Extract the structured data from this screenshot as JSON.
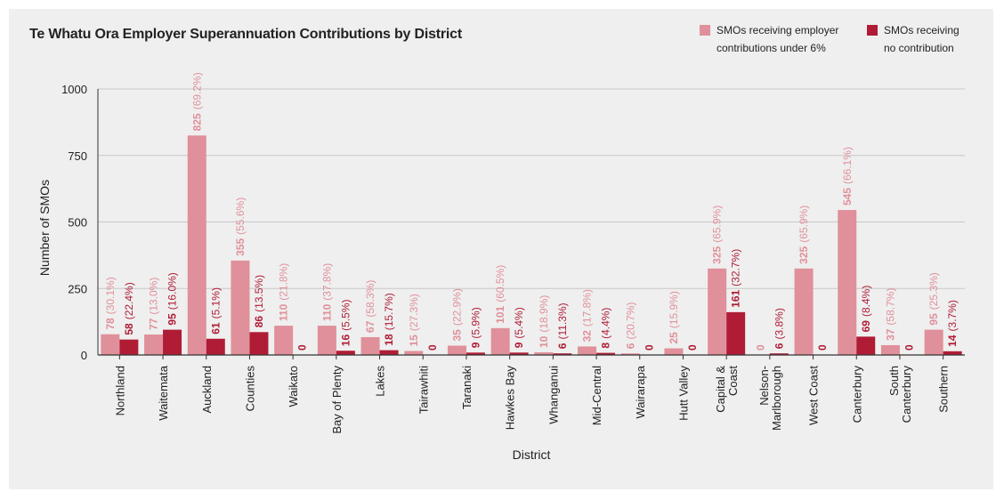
{
  "chart_data": {
    "type": "bar",
    "title": "Te Whatu Ora Employer Superannuation Contributions by District",
    "xlabel": "District",
    "ylabel": "Number of SMOs",
    "ylim": [
      0,
      1000
    ],
    "yticks": [
      0,
      250,
      500,
      750,
      1000
    ],
    "grid": true,
    "legend_position": "top-right",
    "categories": [
      "Northland",
      "Waitemata",
      "Auckland",
      "Counties",
      "Waikato",
      "Bay of Plenty",
      "Lakes",
      "Tairawhiti",
      "Taranaki",
      "Hawkes Bay",
      "Whanganui",
      "Mid-Central",
      "Wairarapa",
      "Hutt Valley",
      "Capital & Coast",
      "Nelson-Marlborough",
      "West Coast",
      "Canterbury",
      "South Canterbury",
      "Southern"
    ],
    "series": [
      {
        "name": "SMOs receiving employer contributions under 6%",
        "color": "#e0909a",
        "values": [
          78,
          77,
          825,
          355,
          110,
          110,
          67,
          15,
          35,
          101,
          10,
          32,
          6,
          25,
          325,
          0,
          325,
          545,
          37,
          95
        ],
        "percent_labels": [
          "(30.1%)",
          "(13.0%)",
          "(69.2%)",
          "(55.6%)",
          "(21.8%)",
          "(37.8%)",
          "(58.3%)",
          "(27.3%)",
          "(22.9%)",
          "(60.5%)",
          "(18.9%)",
          "(17.8%)",
          "(20.7%)",
          "(15.9%)",
          "(65.9%)",
          "",
          "(65.9%)",
          "(66.1%)",
          "(58.7%)",
          "(25.3%)"
        ]
      },
      {
        "name": "SMOs receiving no contribution",
        "color": "#b01c35",
        "values": [
          58,
          95,
          61,
          86,
          0,
          16,
          18,
          0,
          9,
          9,
          6,
          8,
          0,
          0,
          161,
          6,
          0,
          69,
          0,
          14
        ],
        "percent_labels": [
          "(22.4%)",
          "(16.0%)",
          "(5.1%)",
          "(13.5%)",
          "",
          "(5.5%)",
          "(15.7%)",
          "",
          "(5.9%)",
          "(5.4%)",
          "(11.3%)",
          "(4.4%)",
          "",
          "",
          "(32.7%)",
          "(3.8%)",
          "",
          "(8.4%)",
          "",
          "(3.7%)"
        ]
      }
    ]
  },
  "legend": {
    "items": [
      {
        "label": "SMOs receiving employer\ncontributions under 6%",
        "color": "#e0909a"
      },
      {
        "label": "SMOs receiving\nno contribution",
        "color": "#b01c35"
      }
    ]
  }
}
